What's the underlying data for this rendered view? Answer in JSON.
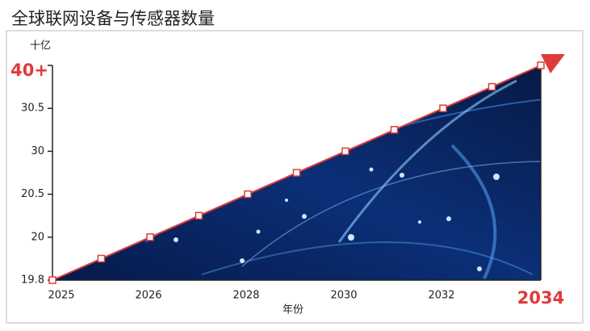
{
  "chart_data": {
    "type": "line",
    "title": "全球联网设备与传感器数量",
    "y_label": "十亿",
    "x_label": "年份",
    "categories": [
      "2025",
      null,
      "2026",
      null,
      "2028",
      null,
      "2030",
      null,
      "2032",
      null,
      "2034"
    ],
    "values": [
      19.8,
      19.9,
      20,
      20.25,
      20.5,
      25.25,
      30,
      30.25,
      30.5,
      35.25,
      40
    ],
    "color": "#e03a3a",
    "y_scale": "piecewise",
    "ylim": [
      19.8,
      40
    ],
    "yticks": [
      19.8,
      20,
      20.5,
      30,
      30.5,
      {
        "value": 40,
        "label": "40+"
      }
    ],
    "highlight_color": "#e03a3a"
  }
}
